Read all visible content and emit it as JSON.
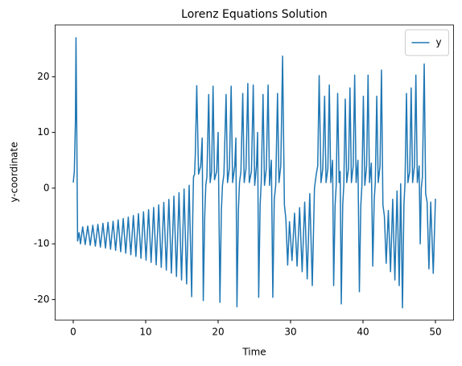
{
  "chart_data": {
    "type": "line",
    "title": "Lorenz Equations Solution",
    "x_label": "Time",
    "y_label": "y-coordinate",
    "x": [
      0,
      0.15,
      0.3,
      0.38,
      0.5,
      0.6,
      0.8,
      1.0,
      1.3,
      1.65,
      2.0,
      2.35,
      2.7,
      3.05,
      3.4,
      3.75,
      4.1,
      4.45,
      4.8,
      5.15,
      5.5,
      5.85,
      6.2,
      6.55,
      6.9,
      7.25,
      7.6,
      7.95,
      8.3,
      8.65,
      9.0,
      9.35,
      9.7,
      10.05,
      10.4,
      10.75,
      11.1,
      11.45,
      11.8,
      12.15,
      12.5,
      12.85,
      13.2,
      13.55,
      13.9,
      14.25,
      14.6,
      14.95,
      15.3,
      15.65,
      16.0,
      16.35,
      16.5,
      16.6,
      16.75,
      16.85,
      17.05,
      17.3,
      17.6,
      17.8,
      17.95,
      18.15,
      18.3,
      18.45,
      18.7,
      18.9,
      19.1,
      19.3,
      19.5,
      19.8,
      20.0,
      20.25,
      20.45,
      20.6,
      20.8,
      21.1,
      21.3,
      21.55,
      21.8,
      22.0,
      22.3,
      22.45,
      22.6,
      22.8,
      22.95,
      23.15,
      23.4,
      23.6,
      23.85,
      24.1,
      24.3,
      24.6,
      24.85,
      25.05,
      25.3,
      25.45,
      25.6,
      25.8,
      25.95,
      26.2,
      26.4,
      26.65,
      26.9,
      27.1,
      27.35,
      27.55,
      27.75,
      27.95,
      28.2,
      28.4,
      28.65,
      28.9,
      29.15,
      29.35,
      29.6,
      29.85,
      30.2,
      30.55,
      30.9,
      31.25,
      31.6,
      31.95,
      32.3,
      32.65,
      33.0,
      33.3,
      33.55,
      33.75,
      33.95,
      34.2,
      34.45,
      34.7,
      34.9,
      35.15,
      35.35,
      35.55,
      35.8,
      35.95,
      36.15,
      36.3,
      36.5,
      36.7,
      36.85,
      37.0,
      37.2,
      37.35,
      37.55,
      37.75,
      38.0,
      38.2,
      38.4,
      38.65,
      38.85,
      39.05,
      39.3,
      39.5,
      39.7,
      39.85,
      40.05,
      40.25,
      40.5,
      40.7,
      40.9,
      41.15,
      41.35,
      41.55,
      41.7,
      41.9,
      42.1,
      42.35,
      42.55,
      42.75,
      42.95,
      43.2,
      43.5,
      43.8,
      44.1,
      44.4,
      44.7,
      45.0,
      45.2,
      45.45,
      45.65,
      45.8,
      46.0,
      46.2,
      46.45,
      46.65,
      46.85,
      47.1,
      47.3,
      47.5,
      47.75,
      47.9,
      48.05,
      48.2,
      48.45,
      48.65,
      48.85,
      49.1,
      49.35,
      49.7,
      50.0
    ],
    "series": [
      {
        "name": "y",
        "color": "#1f77b4",
        "values": [
          1,
          3,
          12,
          27,
          8,
          -9.5,
          -8,
          -10,
          -6.95,
          -10.12,
          -6.81,
          -10.26,
          -6.66,
          -10.42,
          -6.5,
          -10.59,
          -6.32,
          -10.77,
          -6.13,
          -10.97,
          -5.93,
          -11.18,
          -5.7,
          -11.42,
          -5.45,
          -11.68,
          -5.19,
          -11.95,
          -4.9,
          -12.26,
          -4.58,
          -12.59,
          -4.24,
          -12.94,
          -3.87,
          -13.33,
          -3.46,
          -13.76,
          -3.02,
          -14.22,
          -2.54,
          -14.72,
          -2.02,
          -15.26,
          -1.45,
          -15.86,
          -0.83,
          -16.5,
          -0.16,
          -17.2,
          0.5,
          -19.5,
          -5,
          2,
          2.5,
          6,
          18.4,
          2.5,
          4,
          9,
          -20.2,
          -5,
          0.5,
          2,
          16.8,
          1,
          3,
          18.3,
          1.5,
          3,
          10,
          -20.5,
          -4,
          0.5,
          2.5,
          16.8,
          1,
          3.5,
          18.3,
          1,
          4,
          9,
          -21.3,
          -4,
          1,
          3,
          17,
          1,
          3.5,
          18.8,
          1,
          3,
          18.5,
          0.5,
          4,
          10,
          -19.6,
          -3,
          1,
          16.8,
          0.5,
          3.5,
          18.5,
          0.5,
          5,
          -19.6,
          -2,
          0.5,
          17,
          1,
          4,
          23.7,
          -3,
          -5.5,
          -13.8,
          -6,
          -13,
          -4.5,
          -14,
          -3.5,
          -15,
          -2.5,
          -16.3,
          -1,
          -17.5,
          0,
          2.5,
          4,
          20.2,
          1,
          3.5,
          16.5,
          1,
          3.5,
          18.5,
          1,
          5,
          -17.5,
          -3,
          0.5,
          17,
          1,
          3,
          -20.8,
          -3,
          0.5,
          16,
          1,
          3.5,
          18,
          1,
          4,
          20.3,
          1,
          5,
          -18.6,
          -3,
          0.5,
          16.5,
          0.5,
          4,
          20.3,
          1,
          4.5,
          -14,
          -2,
          1,
          16.5,
          1,
          4,
          21.2,
          -3,
          -5,
          -13.5,
          -4,
          -15,
          -2,
          -16.5,
          -0.5,
          -17.5,
          0.8,
          -21.5,
          -3,
          1,
          17,
          1,
          3,
          18,
          1,
          4,
          20.3,
          1,
          4,
          -10,
          0,
          2,
          22.3,
          -1,
          -2.5,
          -14.5,
          -2.5,
          -15.3,
          -1.9
        ]
      }
    ],
    "xlim": [
      -2.5,
      52.5
    ],
    "ylim": [
      -23.7,
      29.3
    ],
    "xticks": [
      0,
      10,
      20,
      30,
      40,
      50
    ],
    "yticks": [
      -20,
      -10,
      0,
      10,
      20
    ],
    "legend": "upper right"
  }
}
